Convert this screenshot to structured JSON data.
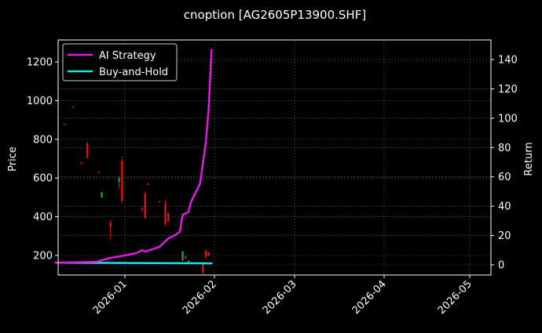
{
  "title": "cnoption [AG2605P13900.SHF]",
  "colors": {
    "background": "#000000",
    "ai_strategy": "#e31ae3",
    "buy_and_hold": "#22e0e8",
    "candle_up": "#1fa31f",
    "candle_down": "#e01010",
    "grid": "#555555",
    "axis": "#ffffff"
  },
  "legend": {
    "items": [
      {
        "label": "AI Strategy",
        "color": "#e31ae3"
      },
      {
        "label": "Buy-and-Hold",
        "color": "#22e0e8"
      }
    ]
  },
  "axes": {
    "left_label": "Price",
    "right_label": "Return",
    "left_ticks": [
      "200",
      "400",
      "600",
      "800",
      "1000",
      "1200"
    ],
    "right_ticks": [
      "0",
      "20",
      "40",
      "60",
      "80",
      "100",
      "120",
      "140"
    ],
    "x_ticks": [
      "2026-01",
      "2026-02",
      "2026-03",
      "2026-04",
      "2026-05"
    ]
  },
  "chart_data": {
    "type": "line",
    "title": "cnoption [AG2605P13900.SHF]",
    "xlabel": "",
    "ylabel": "Price",
    "y2label": "Return",
    "ylim": [
      110,
      1310
    ],
    "y2lim": [
      -8,
      150
    ],
    "xlim": [
      "2025-12-08",
      "2026-05-08"
    ],
    "grid": true,
    "legend_position": "upper left",
    "x_ticks": [
      "2026-01",
      "2026-02",
      "2026-03",
      "2026-04",
      "2026-05"
    ],
    "series": [
      {
        "name": "AI Strategy",
        "axis": "right",
        "color": "#e31ae3",
        "x": [
          "2025-12-08",
          "2025-12-22",
          "2025-12-27",
          "2026-01-01",
          "2026-01-05",
          "2026-01-07",
          "2026-01-08",
          "2026-01-13",
          "2026-01-16",
          "2026-01-19",
          "2026-01-20",
          "2026-01-21",
          "2026-01-23",
          "2026-01-24",
          "2026-01-27",
          "2026-01-29",
          "2026-01-30",
          "2026-01-31"
        ],
        "values": [
          1.5,
          2,
          4.7,
          6.4,
          8,
          10,
          9,
          12.3,
          18,
          21,
          22.5,
          34,
          36,
          43.5,
          55.2,
          83.5,
          106,
          146.5
        ]
      },
      {
        "name": "Buy-and-Hold",
        "axis": "right",
        "color": "#22e0e8",
        "x": [
          "2025-12-08",
          "2026-01-31"
        ],
        "values": [
          1.5,
          1
        ]
      },
      {
        "name": "Price (candlestick)",
        "axis": "left",
        "type": "candlestick",
        "candles": [
          {
            "x": "2025-12-11",
            "open": 880,
            "high": 880,
            "low": 875,
            "close": 875,
            "dir": "down"
          },
          {
            "x": "2025-12-14",
            "open": 970,
            "high": 972,
            "low": 965,
            "close": 965,
            "dir": "down"
          },
          {
            "x": "2025-12-17",
            "open": 680,
            "high": 685,
            "low": 675,
            "close": 675,
            "dir": "down"
          },
          {
            "x": "2025-12-19",
            "open": 780,
            "high": 790,
            "low": 700,
            "close": 705,
            "dir": "down"
          },
          {
            "x": "2025-12-23",
            "open": 630,
            "high": 635,
            "low": 625,
            "close": 625,
            "dir": "down"
          },
          {
            "x": "2025-12-24",
            "open": 500,
            "high": 530,
            "low": 500,
            "close": 525,
            "dir": "up"
          },
          {
            "x": "2025-12-27",
            "open": 370,
            "high": 385,
            "low": 280,
            "close": 345,
            "dir": "down"
          },
          {
            "x": "2025-12-30",
            "open": 580,
            "high": 610,
            "low": 545,
            "close": 600,
            "dir": "up"
          },
          {
            "x": "2025-12-31",
            "open": 690,
            "high": 715,
            "low": 470,
            "close": 480,
            "dir": "down"
          },
          {
            "x": "2026-01-07",
            "open": 445,
            "high": 450,
            "low": 430,
            "close": 435,
            "dir": "down"
          },
          {
            "x": "2026-01-08",
            "open": 520,
            "high": 530,
            "low": 390,
            "close": 395,
            "dir": "down"
          },
          {
            "x": "2026-01-09",
            "open": 570,
            "high": 575,
            "low": 565,
            "close": 565,
            "dir": "down"
          },
          {
            "x": "2026-01-13",
            "open": 480,
            "high": 485,
            "low": 475,
            "close": 475,
            "dir": "down"
          },
          {
            "x": "2026-01-15",
            "open": 470,
            "high": 490,
            "low": 350,
            "close": 360,
            "dir": "down"
          },
          {
            "x": "2026-01-16",
            "open": 420,
            "high": 425,
            "low": 370,
            "close": 375,
            "dir": "down"
          },
          {
            "x": "2026-01-21",
            "open": 175,
            "high": 225,
            "low": 170,
            "close": 220,
            "dir": "up"
          },
          {
            "x": "2026-01-22",
            "open": 195,
            "high": 200,
            "low": 180,
            "close": 185,
            "dir": "down"
          },
          {
            "x": "2026-01-23",
            "open": 165,
            "high": 175,
            "low": 160,
            "close": 172,
            "dir": "up"
          },
          {
            "x": "2026-01-28",
            "open": 160,
            "high": 165,
            "low": 105,
            "close": 110,
            "dir": "down"
          },
          {
            "x": "2026-01-29",
            "open": 225,
            "high": 235,
            "low": 180,
            "close": 190,
            "dir": "down"
          },
          {
            "x": "2026-01-30",
            "open": 215,
            "high": 220,
            "low": 195,
            "close": 200,
            "dir": "down"
          }
        ]
      }
    ]
  }
}
